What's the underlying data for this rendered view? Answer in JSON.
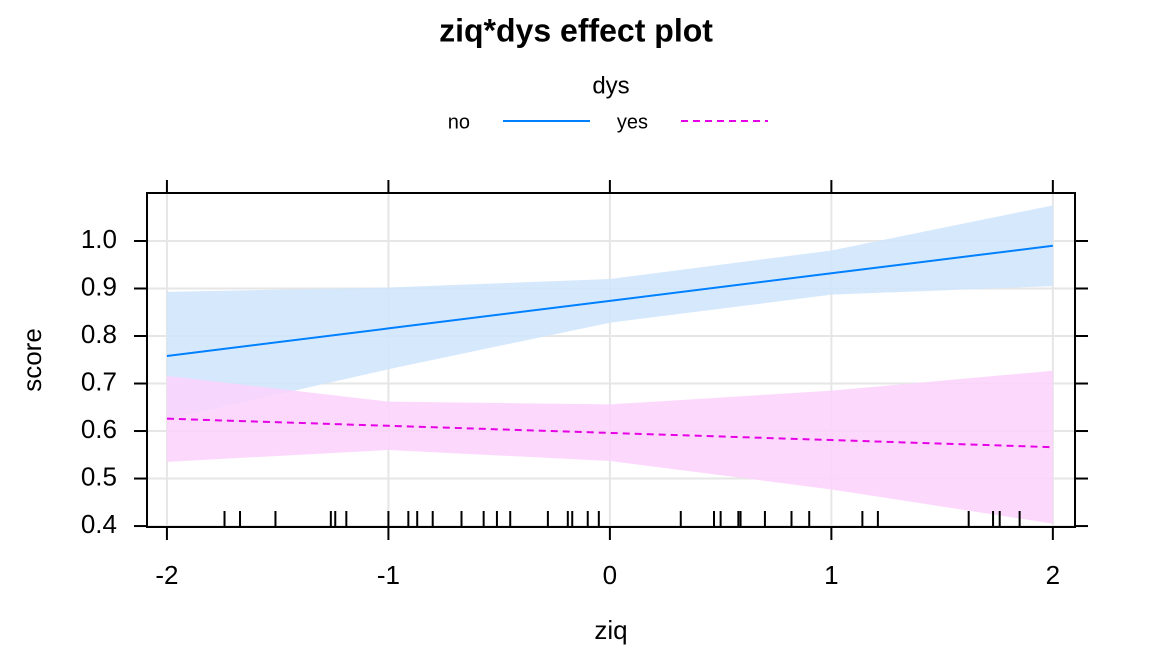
{
  "chart_data": {
    "type": "line",
    "title": "ziq*dys effect plot",
    "x_label": "ziq",
    "y_label": "score",
    "legend_title": "dys",
    "x": [
      -2,
      -1,
      0,
      1,
      2
    ],
    "xlim": [
      -2.09,
      2.1
    ],
    "xticks": [
      -2,
      -1,
      0,
      1,
      2
    ],
    "ylim": [
      0.398,
      1.101
    ],
    "yticks": [
      {
        "value": 0.4,
        "label": "0.4"
      },
      0.5,
      0.6,
      0.7,
      0.8,
      0.9,
      {
        "value": 1.0,
        "label": "1.0"
      }
    ],
    "grid": true,
    "series": [
      {
        "name": "no",
        "color": "#0080ff",
        "band_color": "#cfe5fb",
        "linestyle": "solid",
        "values": [
          0.758,
          0.816,
          0.874,
          0.932,
          0.99
        ],
        "upper": [
          0.893,
          0.902,
          0.92,
          0.98,
          1.075
        ],
        "lower": [
          0.624,
          0.73,
          0.828,
          0.887,
          0.905
        ]
      },
      {
        "name": "yes",
        "color": "#e600e6",
        "band_color": "#fbd2fb",
        "linestyle": "dashed",
        "values": [
          0.626,
          0.611,
          0.596,
          0.581,
          0.566
        ],
        "upper": [
          0.716,
          0.662,
          0.656,
          0.685,
          0.727
        ],
        "lower": [
          0.535,
          0.56,
          0.537,
          0.477,
          0.405
        ]
      }
    ],
    "rug": [
      -1.74,
      -1.67,
      -1.51,
      -1.26,
      -1.24,
      -1.19,
      -1.0,
      -0.91,
      -0.87,
      -0.8,
      -0.67,
      -0.57,
      -0.51,
      -0.45,
      -0.28,
      -0.19,
      -0.17,
      -0.1,
      -0.05,
      0.32,
      0.47,
      0.5,
      0.58,
      0.59,
      0.7,
      0.82,
      0.9,
      1.14,
      1.21,
      1.62,
      1.73,
      1.76,
      1.85
    ]
  }
}
